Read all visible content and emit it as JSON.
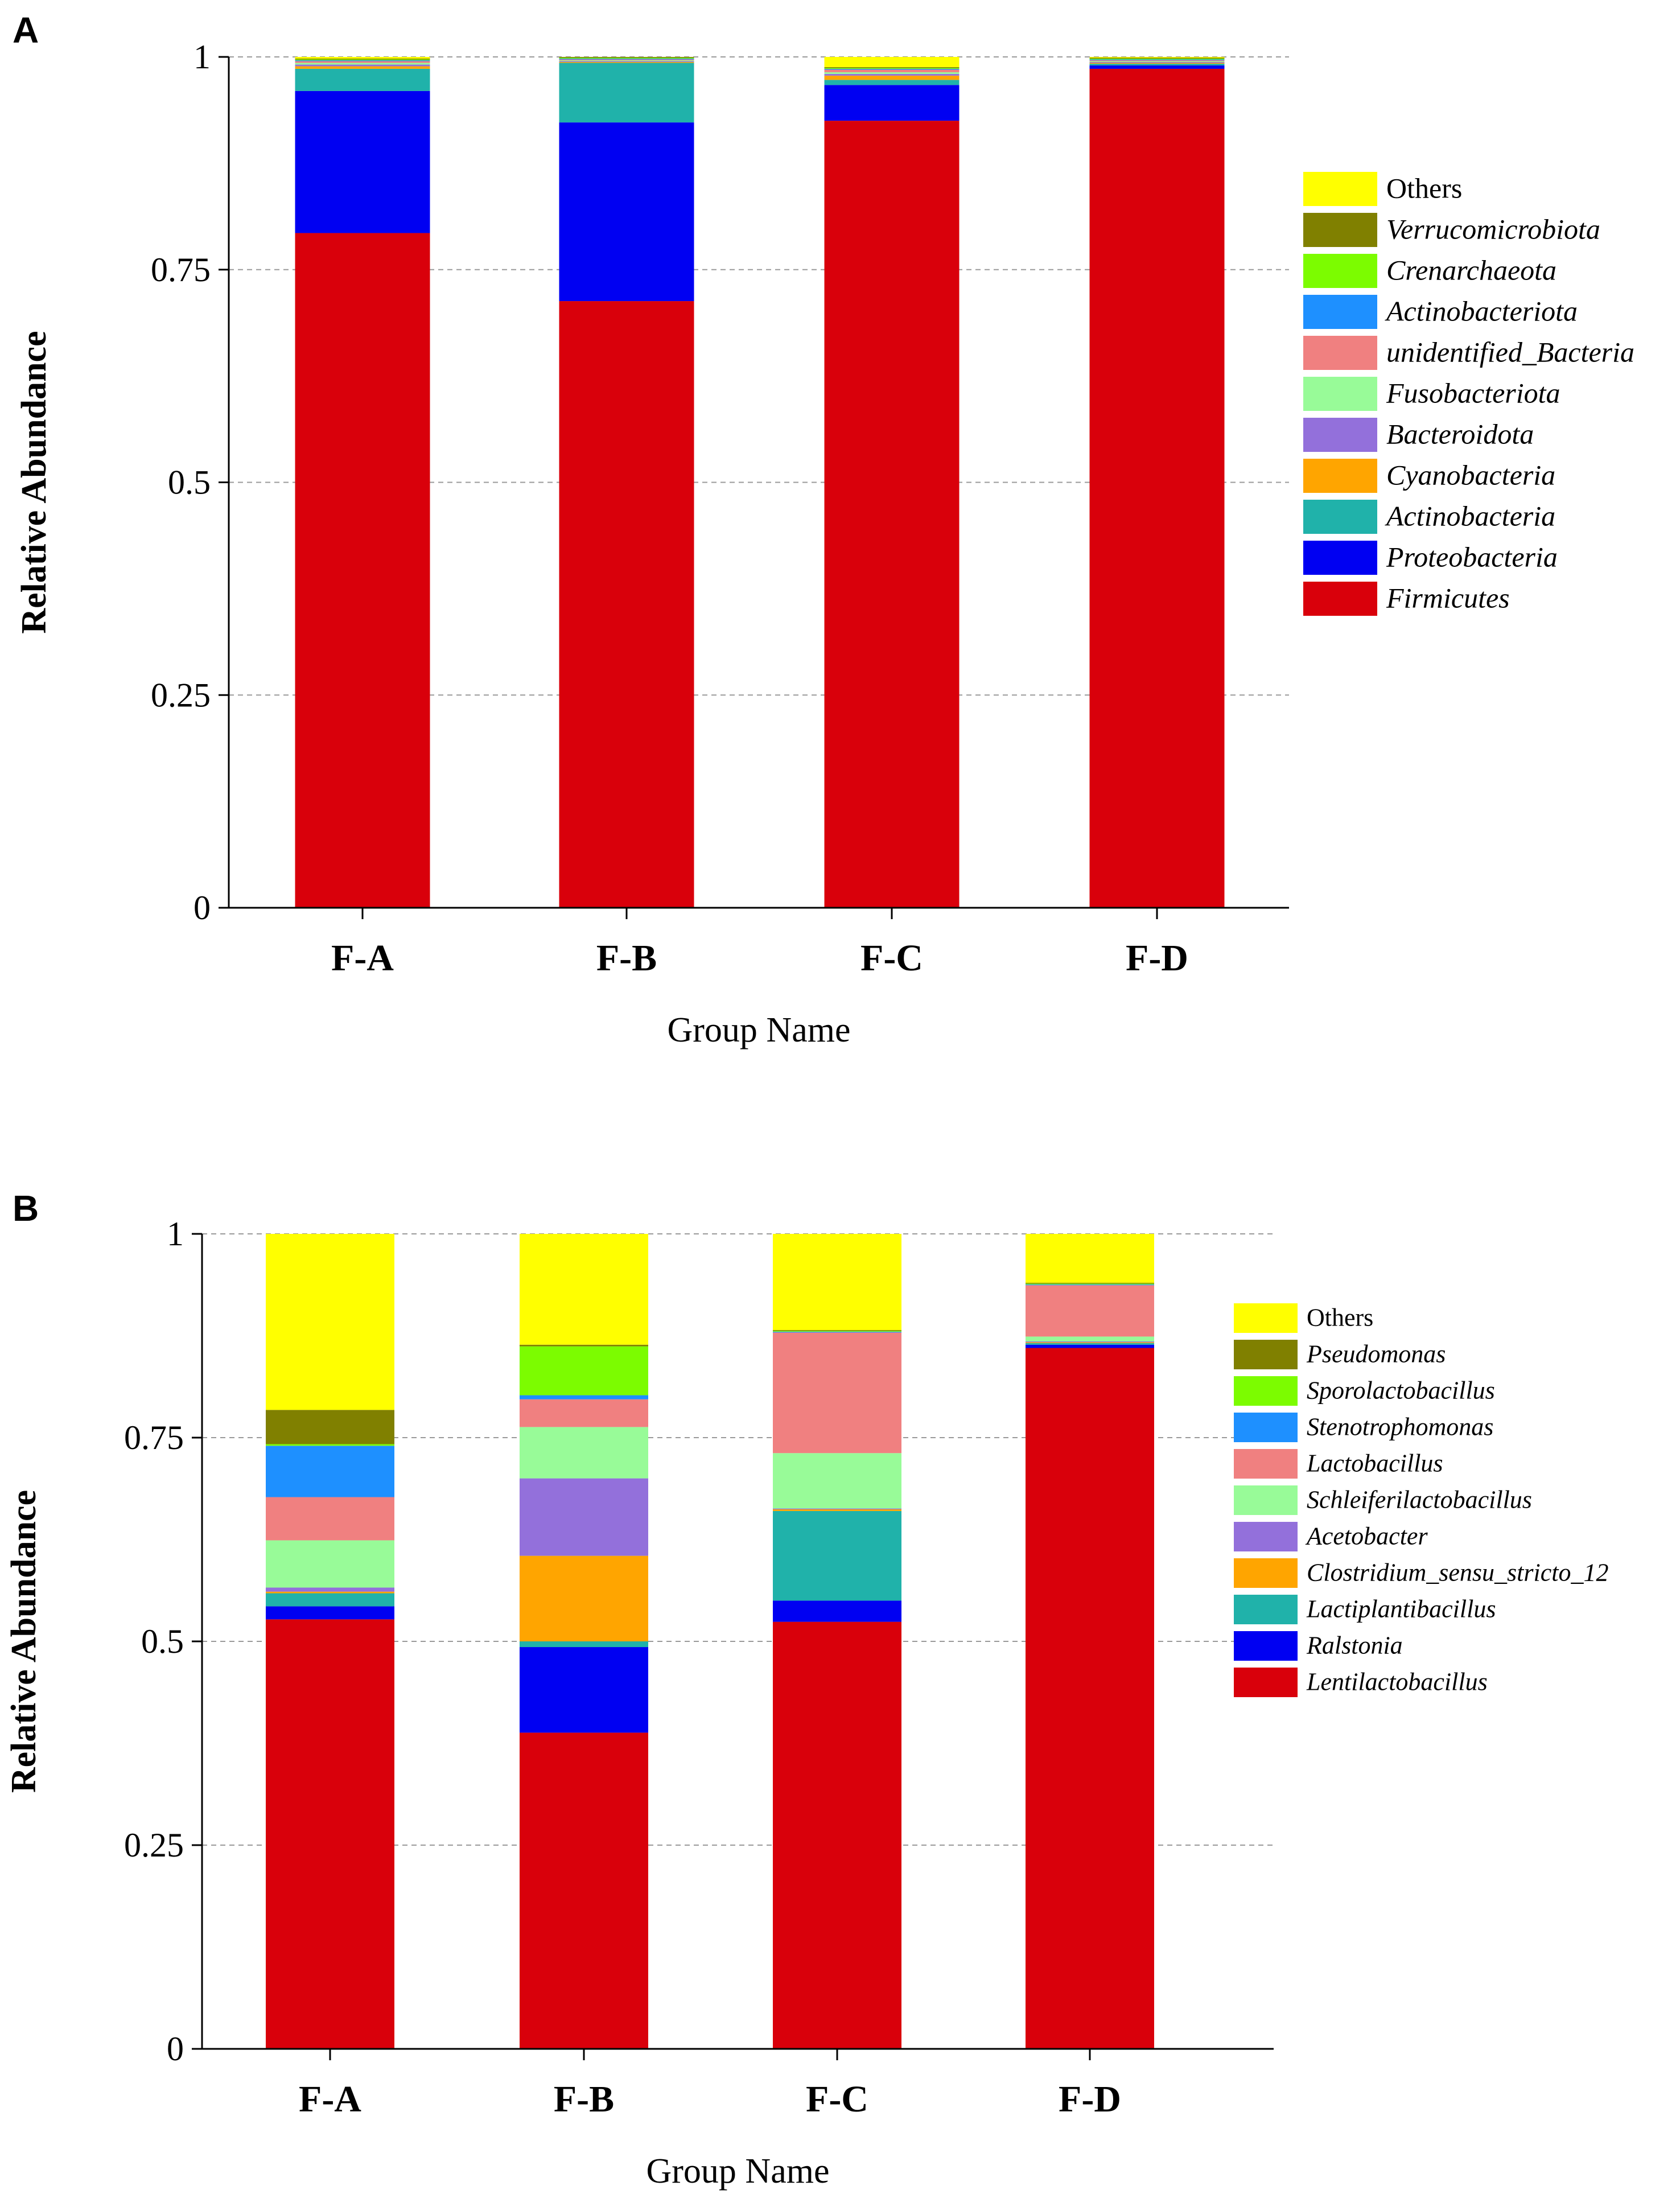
{
  "chart_data": [
    {
      "panel_label": "A",
      "type": "stacked-bar",
      "xlabel": "Group Name",
      "ylabel": "Relative Abundance",
      "ylim": [
        0,
        1
      ],
      "yticks": [
        0,
        0.25,
        0.5,
        0.75,
        1
      ],
      "ytick_labels": [
        "0",
        "0.25",
        "0.5",
        "0.75",
        "1"
      ],
      "grid": "dashed horizontal at ticks",
      "legend_position": "right",
      "categories": [
        "F-A",
        "F-B",
        "F-C",
        "F-D"
      ],
      "series": [
        {
          "name": "Firmicutes",
          "italic": true,
          "color": "#D9000B",
          "values": [
            0.793,
            0.713,
            0.925,
            0.986
          ]
        },
        {
          "name": "Proteobacteria",
          "italic": true,
          "color": "#0000F2",
          "values": [
            0.167,
            0.21,
            0.042,
            0.004
          ]
        },
        {
          "name": "Actinobacteria",
          "italic": true,
          "color": "#20B2AA",
          "values": [
            0.026,
            0.07,
            0.006,
            0.002
          ]
        },
        {
          "name": "Cyanobacteria",
          "italic": true,
          "color": "#FFA500",
          "values": [
            0.003,
            0.001,
            0.005,
            0.001
          ]
        },
        {
          "name": "Bacteroidota",
          "italic": true,
          "color": "#9370DB",
          "values": [
            0.002,
            0.001,
            0.002,
            0.001
          ]
        },
        {
          "name": "Fusobacteriota",
          "italic": true,
          "color": "#98FB98",
          "values": [
            0.002,
            0.001,
            0.002,
            0.001
          ]
        },
        {
          "name": "unidentified_Bacteria",
          "italic": true,
          "color": "#F08080",
          "values": [
            0.002,
            0.001,
            0.003,
            0.001
          ]
        },
        {
          "name": "Actinobacteriota",
          "italic": true,
          "color": "#1E90FF",
          "values": [
            0.001,
            0.001,
            0.001,
            0.001
          ]
        },
        {
          "name": "Crenarchaeota",
          "italic": true,
          "color": "#7CFC00",
          "values": [
            0.001,
            0.001,
            0.001,
            0.001
          ]
        },
        {
          "name": "Verrucomicrobiota",
          "italic": true,
          "color": "#808000",
          "values": [
            0.001,
            0.001,
            0.001,
            0.001
          ]
        },
        {
          "name": "Others",
          "italic": false,
          "color": "#FFFF00",
          "values": [
            0.002,
            0.0,
            0.012,
            0.001
          ]
        }
      ]
    },
    {
      "panel_label": "B",
      "type": "stacked-bar",
      "xlabel": "Group Name",
      "ylabel": "Relative Abundance",
      "ylim": [
        0,
        1
      ],
      "yticks": [
        0,
        0.25,
        0.5,
        0.75,
        1
      ],
      "ytick_labels": [
        "0",
        "0.25",
        "0.5",
        "0.75",
        "1"
      ],
      "grid": "dashed horizontal at ticks",
      "legend_position": "right",
      "categories": [
        "F-A",
        "F-B",
        "F-C",
        "F-D"
      ],
      "series": [
        {
          "name": "Lentilactobacillus",
          "italic": true,
          "color": "#D9000B",
          "values": [
            0.527,
            0.388,
            0.524,
            0.86
          ]
        },
        {
          "name": "Ralstonia",
          "italic": true,
          "color": "#0000F2",
          "values": [
            0.016,
            0.105,
            0.026,
            0.004
          ]
        },
        {
          "name": "Lactiplantibacillus",
          "italic": true,
          "color": "#20B2AA",
          "values": [
            0.016,
            0.007,
            0.11,
            0.002
          ]
        },
        {
          "name": "Clostridium_sensu_stricto_12",
          "italic": true,
          "color": "#FFA500",
          "values": [
            0.002,
            0.105,
            0.002,
            0.001
          ]
        },
        {
          "name": "Acetobacter",
          "italic": true,
          "color": "#9370DB",
          "values": [
            0.005,
            0.095,
            0.001,
            0.001
          ]
        },
        {
          "name": "Schleiferilactobacillus",
          "italic": true,
          "color": "#98FB98",
          "values": [
            0.058,
            0.063,
            0.068,
            0.006
          ]
        },
        {
          "name": "Lactobacillus",
          "italic": true,
          "color": "#F08080",
          "values": [
            0.053,
            0.034,
            0.148,
            0.063
          ]
        },
        {
          "name": "Stenotrophomonas",
          "italic": true,
          "color": "#1E90FF",
          "values": [
            0.063,
            0.005,
            0.001,
            0.001
          ]
        },
        {
          "name": "Sporolactobacillus",
          "italic": true,
          "color": "#7CFC00",
          "values": [
            0.002,
            0.06,
            0.001,
            0.001
          ]
        },
        {
          "name": "Pseudomonas",
          "italic": true,
          "color": "#808000",
          "values": [
            0.042,
            0.002,
            0.001,
            0.001
          ]
        },
        {
          "name": "Others",
          "italic": false,
          "color": "#FFFF00",
          "values": [
            0.216,
            0.136,
            0.118,
            0.06
          ]
        }
      ]
    }
  ]
}
